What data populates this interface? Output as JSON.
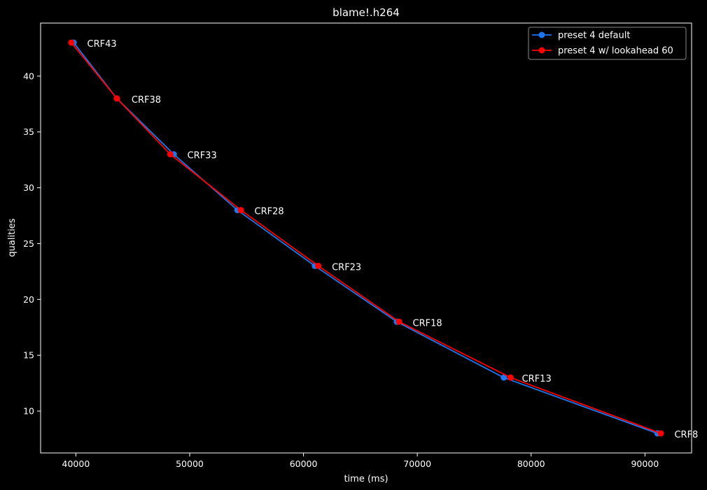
{
  "chart_data": {
    "type": "line",
    "title": "blame!.h264",
    "xlabel": "time (ms)",
    "ylabel": "qualities",
    "xlim": [
      36900,
      94100
    ],
    "ylim": [
      6.25,
      44.75
    ],
    "xticks": [
      40000,
      50000,
      60000,
      70000,
      80000,
      90000
    ],
    "yticks": [
      10,
      15,
      20,
      25,
      30,
      35,
      40
    ],
    "grid": false,
    "legend_position": "top-right",
    "series": [
      {
        "name": "preset 4 default",
        "color": "#1f77f0",
        "marker": "circle",
        "points": [
          {
            "x": 39800,
            "y": 43
          },
          {
            "x": 43600,
            "y": 38
          },
          {
            "x": 48600,
            "y": 33
          },
          {
            "x": 54200,
            "y": 28
          },
          {
            "x": 61000,
            "y": 23
          },
          {
            "x": 68200,
            "y": 18
          },
          {
            "x": 77600,
            "y": 13
          },
          {
            "x": 91100,
            "y": 8
          }
        ]
      },
      {
        "name": "preset 4 w/ lookahead 60",
        "color": "#ff0000",
        "marker": "circle",
        "points": [
          {
            "x": 39600,
            "y": 43
          },
          {
            "x": 43600,
            "y": 38
          },
          {
            "x": 48300,
            "y": 33
          },
          {
            "x": 54500,
            "y": 28
          },
          {
            "x": 61300,
            "y": 23
          },
          {
            "x": 68400,
            "y": 18
          },
          {
            "x": 78200,
            "y": 13
          },
          {
            "x": 91400,
            "y": 8
          }
        ]
      }
    ],
    "annotations": [
      {
        "text": "CRF43",
        "x": 39700,
        "y": 43
      },
      {
        "text": "CRF38",
        "x": 43600,
        "y": 38
      },
      {
        "text": "CRF33",
        "x": 48500,
        "y": 33
      },
      {
        "text": "CRF28",
        "x": 54400,
        "y": 28
      },
      {
        "text": "CRF23",
        "x": 61200,
        "y": 23
      },
      {
        "text": "CRF18",
        "x": 68300,
        "y": 18
      },
      {
        "text": "CRF13",
        "x": 77900,
        "y": 13
      },
      {
        "text": "CRF8",
        "x": 91300,
        "y": 8
      }
    ]
  }
}
